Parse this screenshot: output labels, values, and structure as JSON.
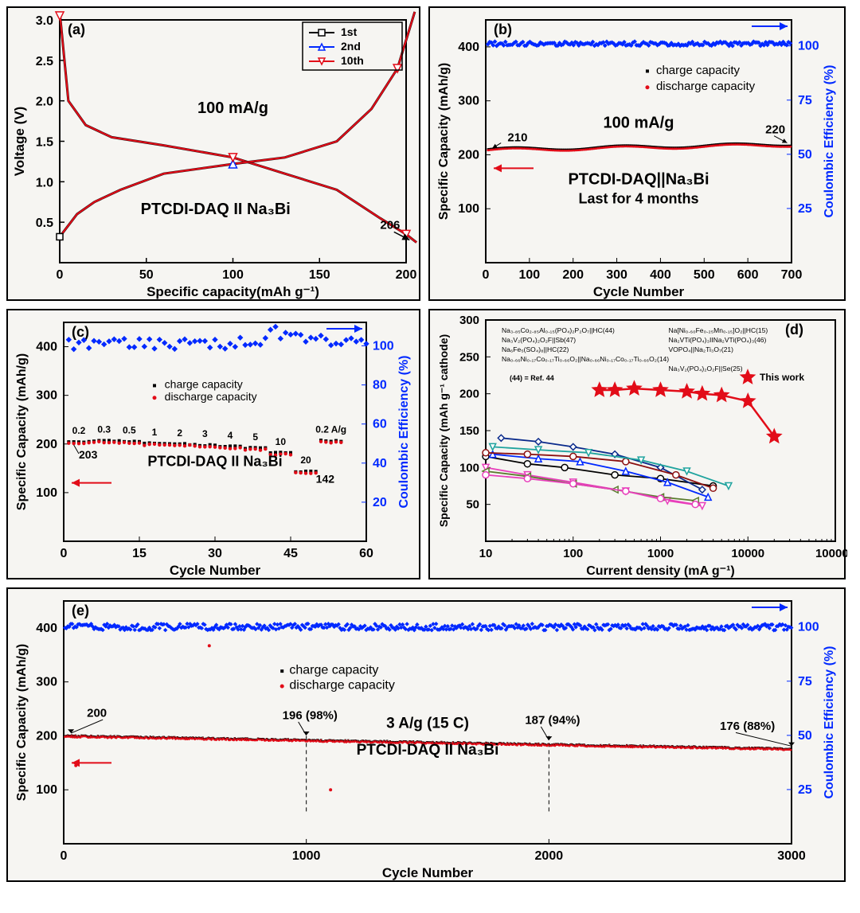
{
  "figure_background": "#f6f5f2",
  "colors": {
    "black": "#000000",
    "red": "#e20c18",
    "blue": "#0029ff",
    "darkred": "#8b0f0f",
    "olive": "#5b7b2e",
    "magenta": "#e83fbb",
    "cyan": "#1fa39e",
    "navy": "#0a2a8b"
  },
  "a": {
    "panel_label": "(a)",
    "x_label": "Specific capacity(mAh g⁻¹)",
    "y_label": "Voltage (V)",
    "xlim": [
      0,
      200
    ],
    "x_ticks": [
      0,
      50,
      100,
      150,
      200
    ],
    "ylim": [
      0,
      3.0
    ],
    "y_ticks": [
      0.5,
      1.0,
      1.5,
      2.0,
      2.5,
      3.0
    ],
    "rate_text": "100 mA/g",
    "cell_text": "PTCDI-DAQ II Na₃Bi",
    "end_value": "206",
    "legend": [
      "1st",
      "2nd",
      "10th"
    ],
    "legend_colors": [
      "#000000",
      "#0029ff",
      "#e20c18"
    ],
    "legend_markers": [
      "square",
      "triangle",
      "inv-triangle"
    ],
    "charge_curve": [
      [
        0,
        0.32
      ],
      [
        10,
        0.6
      ],
      [
        20,
        0.75
      ],
      [
        35,
        0.9
      ],
      [
        60,
        1.1
      ],
      [
        100,
        1.22
      ],
      [
        130,
        1.3
      ],
      [
        160,
        1.5
      ],
      [
        180,
        1.9
      ],
      [
        195,
        2.4
      ],
      [
        205,
        3.1
      ]
    ],
    "discharge_curve": [
      [
        0,
        3.1
      ],
      [
        5,
        2.0
      ],
      [
        15,
        1.7
      ],
      [
        30,
        1.55
      ],
      [
        60,
        1.45
      ],
      [
        100,
        1.3
      ],
      [
        130,
        1.1
      ],
      [
        160,
        0.9
      ],
      [
        185,
        0.55
      ],
      [
        200,
        0.35
      ],
      [
        206,
        0.25
      ]
    ]
  },
  "b": {
    "panel_label": "(b)",
    "x_label": "Cycle Number",
    "y_left_label": "Specific Capacity (mAh/g)",
    "y_right_label": "Coulombic Efficiency (%)",
    "xlim": [
      0,
      700
    ],
    "x_ticks": [
      0,
      100,
      200,
      300,
      400,
      500,
      600,
      700
    ],
    "ylim_left": [
      0,
      450
    ],
    "y_left_ticks": [
      100,
      200,
      300,
      400
    ],
    "ylim_right": [
      0,
      112
    ],
    "y_right_ticks": [
      25,
      50,
      75,
      100
    ],
    "rate_text": "100 mA/g",
    "cell_text": "PTCDI-DAQ||Na₃Bi",
    "note_text": "Last for 4 months",
    "legend": [
      "charge capacity",
      "discharge capacity"
    ],
    "legend_colors": [
      "#000000",
      "#e20c18"
    ],
    "start_label": "210",
    "end_label": "220",
    "capacity_trace": [
      [
        5,
        210
      ],
      [
        700,
        220
      ]
    ],
    "ce_trace": [
      [
        5,
        101
      ],
      [
        700,
        101
      ]
    ]
  },
  "c": {
    "panel_label": "(c)",
    "x_label": "Cycle Number",
    "y_left_label": "Specific Capacity (mAh/g)",
    "y_right_label": "Coulombic Efficiency (%)",
    "xlim": [
      0,
      60
    ],
    "x_ticks": [
      0,
      15,
      30,
      45,
      60
    ],
    "ylim_left": [
      0,
      450
    ],
    "y_left_ticks": [
      100,
      200,
      300,
      400
    ],
    "ylim_right": [
      0,
      112
    ],
    "y_right_ticks": [
      20,
      40,
      60,
      80,
      100
    ],
    "legend": [
      "charge capacity",
      "discharge capacity"
    ],
    "legend_colors": [
      "#000000",
      "#e20c18"
    ],
    "cell_text": "PTCDI-DAQ II Na₃Bi",
    "start_value": "203",
    "low_value": "142",
    "rate_labels": [
      "0.2",
      "0.3",
      "0.5",
      "1",
      "2",
      "3",
      "4",
      "5",
      "10",
      "20",
      "0.2 A/g"
    ],
    "rate_x": [
      3,
      8,
      13,
      18,
      23,
      28,
      33,
      38,
      43,
      48,
      55
    ],
    "capacity_y": [
      203,
      205,
      204,
      200,
      198,
      196,
      193,
      190,
      180,
      142,
      205
    ],
    "ce_trace": [
      [
        1,
        103
      ],
      [
        60,
        101
      ]
    ]
  },
  "d": {
    "panel_label": "(d)",
    "x_label": "Current density (mA g⁻¹)",
    "y_label": "Specific Capacity (mAh g⁻¹ cathode)",
    "xlim_log": [
      10,
      100000
    ],
    "x_ticks_log": [
      10,
      100,
      1000,
      10000,
      100000
    ],
    "ylim": [
      0,
      300
    ],
    "y_ticks": [
      50,
      100,
      150,
      200,
      250,
      300
    ],
    "this_work_label": "This work",
    "ref_note": "(44) = Ref. 44",
    "legend_pairs": [
      [
        "Na₃.₈₅Co₂.₈₅Al₀.₁₅(PO₄)₂P₂O₇||HC(44)",
        "Na[Ni₀.₆₀Fe₀.₂₅Mn₀.₁₅]O₂||HC(15)"
      ],
      [
        "Na₃V₂(PO₄)₂O₂F||Sb(47)",
        "Na₂VTi(PO₄)₃IINa₂VTi(PO₄)₃(46)"
      ],
      [
        "Na₆Fe₅(SO₄)₈||HC(22)",
        "VOPO₄||Na₂Ti₃O₇(21)"
      ],
      [
        "Na₀.₆₆Ni₀.₁₇Co₀.₁₇Ti₀.₆₆O₂||Na₀.₆₆Ni₀.₁₇Co₀.₁₇Ti₀.₆₆O₂(14)",
        ""
      ],
      [
        "",
        "Na₃V₂(PO₄)₂O₂F||Se(25)"
      ]
    ],
    "this_work": {
      "color": "#e20c18",
      "points": [
        [
          200,
          205
        ],
        [
          300,
          205
        ],
        [
          500,
          207
        ],
        [
          1000,
          205
        ],
        [
          2000,
          203
        ],
        [
          3000,
          200
        ],
        [
          5000,
          198
        ],
        [
          10000,
          190
        ],
        [
          20000,
          142
        ]
      ]
    },
    "refs": [
      {
        "color": "#000000",
        "marker": "circle",
        "points": [
          [
            10,
            115
          ],
          [
            30,
            105
          ],
          [
            80,
            100
          ],
          [
            300,
            90
          ],
          [
            1000,
            85
          ],
          [
            4000,
            75
          ]
        ]
      },
      {
        "color": "#0a2a8b",
        "marker": "diamond",
        "points": [
          [
            15,
            140
          ],
          [
            40,
            135
          ],
          [
            100,
            128
          ],
          [
            300,
            118
          ],
          [
            1000,
            100
          ],
          [
            3000,
            70
          ]
        ]
      },
      {
        "color": "#0029ff",
        "marker": "triangle",
        "points": [
          [
            12,
            118
          ],
          [
            40,
            112
          ],
          [
            120,
            108
          ],
          [
            400,
            95
          ],
          [
            1200,
            80
          ],
          [
            3500,
            60
          ]
        ]
      },
      {
        "color": "#e83fbb",
        "marker": "inv-triangle",
        "points": [
          [
            10,
            100
          ],
          [
            30,
            90
          ],
          [
            100,
            80
          ],
          [
            400,
            68
          ],
          [
            1200,
            55
          ],
          [
            3000,
            48
          ]
        ]
      },
      {
        "color": "#5b7b2e",
        "marker": "lr-triangle",
        "points": [
          [
            10,
            95
          ],
          [
            30,
            88
          ],
          [
            100,
            78
          ],
          [
            300,
            70
          ],
          [
            1000,
            60
          ],
          [
            2500,
            55
          ]
        ]
      },
      {
        "color": "#8b0f0f",
        "marker": "circle",
        "points": [
          [
            10,
            120
          ],
          [
            30,
            118
          ],
          [
            100,
            115
          ],
          [
            400,
            108
          ],
          [
            1500,
            90
          ],
          [
            4000,
            72
          ]
        ]
      },
      {
        "color": "#e83fbb",
        "marker": "circle",
        "points": [
          [
            10,
            90
          ],
          [
            30,
            85
          ],
          [
            100,
            78
          ],
          [
            400,
            68
          ],
          [
            1000,
            58
          ],
          [
            2500,
            50
          ]
        ]
      },
      {
        "color": "#1fa39e",
        "marker": "inv-triangle",
        "points": [
          [
            12,
            128
          ],
          [
            40,
            124
          ],
          [
            150,
            120
          ],
          [
            600,
            110
          ],
          [
            2000,
            95
          ],
          [
            6000,
            75
          ]
        ]
      }
    ]
  },
  "e": {
    "panel_label": "(e)",
    "x_label": "Cycle Number",
    "y_left_label": "Specific Capacity (mAh/g)",
    "y_right_label": "Coulombic Efficiency (%)",
    "xlim": [
      0,
      3000
    ],
    "x_ticks": [
      0,
      1000,
      2000,
      3000
    ],
    "ylim_left": [
      0,
      450
    ],
    "y_left_ticks": [
      100,
      200,
      300,
      400
    ],
    "ylim_right": [
      0,
      112
    ],
    "y_right_ticks": [
      25,
      50,
      75,
      100
    ],
    "rate_text": "3 A/g (15 C)",
    "cell_text": "PTCDI-DAQ II Na₃Bi",
    "legend": [
      "charge capacity",
      "discharge capacity"
    ],
    "legend_colors": [
      "#000000",
      "#e20c18"
    ],
    "points": {
      "0": 200,
      "1000": 196,
      "2000": 187,
      "3000": 176
    },
    "labels": [
      "200",
      "196 (98%)",
      "187 (94%)",
      "176 (88%)"
    ],
    "capacity_trace": [
      [
        5,
        200
      ],
      [
        1000,
        196
      ],
      [
        2000,
        187
      ],
      [
        3000,
        176
      ]
    ],
    "ce_trace": [
      [
        5,
        100
      ],
      [
        3000,
        100
      ]
    ],
    "outliers": [
      [
        600,
        367
      ],
      [
        1100,
        100
      ],
      [
        50,
        145
      ]
    ]
  }
}
